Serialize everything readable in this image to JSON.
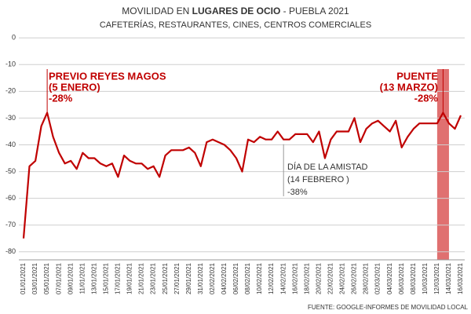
{
  "chart_data": {
    "type": "line",
    "title_parts": [
      "MOVILIDAD EN ",
      "LUGARES DE OCIO",
      " - PUEBLA 2021"
    ],
    "subtitle": "CAFETERÍAS, RESTAURANTES, CINES, CENTROS COMERCIALES",
    "source": "FUENTE: GOOGLE-INFORMES DE MOVILIDAD LOCAL",
    "categories": [
      "01/01/2021",
      null,
      "03/01/2021",
      null,
      "05/01/2021",
      null,
      "07/01/2021",
      null,
      "09/01/2021",
      null,
      "11/01/2021",
      null,
      "13/01/2021",
      null,
      "15/01/2021",
      null,
      "17/01/2021",
      null,
      "19/01/2021",
      null,
      "21/01/2021",
      null,
      "23/01/2021",
      null,
      "25/01/2021",
      null,
      "27/01/2021",
      null,
      "29/01/2021",
      null,
      "31/01/2021",
      null,
      "02/02/2021",
      null,
      "04/02/2021",
      null,
      "06/02/2021",
      null,
      "08/02/2021",
      null,
      "10/02/2021",
      null,
      "12/02/2021",
      null,
      "14/02/2021",
      null,
      "16/02/2021",
      null,
      "18/02/2021",
      null,
      "20/02/2021",
      null,
      "22/02/2021",
      null,
      "24/02/2021",
      null,
      "26/02/2021",
      null,
      "28/02/2021",
      null,
      "02/03/2021",
      null,
      "04/03/2021",
      null,
      "06/03/2021",
      null,
      "08/03/2021",
      null,
      "10/03/2021",
      null,
      "12/03/2021",
      null,
      "14/03/2021",
      null,
      "16/03/2021"
    ],
    "series": [
      {
        "name": null,
        "color": "#c00000",
        "values": [
          -75,
          -48,
          -46,
          -33,
          -28,
          -37,
          -43,
          -47,
          -46,
          -49,
          -43,
          -45,
          -45,
          -47,
          -48,
          -47,
          -52,
          -44,
          -46,
          -47,
          -47,
          -49,
          -48,
          -52,
          -44,
          -42,
          -42,
          -42,
          -41,
          -43,
          -48,
          -39,
          -38,
          -39,
          -40,
          -42,
          -45,
          -50,
          -38,
          -39,
          -37,
          -38,
          -38,
          -35,
          -38,
          -38,
          -36,
          -36,
          -36,
          -39,
          -35,
          -45,
          -38,
          -35,
          -35,
          -35,
          -30,
          -39,
          -34,
          -32,
          -31,
          -33,
          -35,
          -31,
          -41,
          -37,
          -34,
          -32,
          -32,
          -32,
          -32,
          -28,
          -32,
          -34,
          -29
        ]
      }
    ],
    "ylim": [
      -83,
      3
    ],
    "yticks": [
      0,
      -10,
      -20,
      -30,
      -40,
      -50,
      -60,
      -70,
      -80
    ],
    "grid": true,
    "highlight_color": "#e07070",
    "annotations": [
      {
        "lines": [
          "PREVIO REYES MAGOS",
          "(5 ENERO)",
          "-28%"
        ],
        "color": "#c00000"
      },
      {
        "lines": [
          "PUENTE",
          "(13 MARZO)",
          "-28%"
        ],
        "color": "#c00000"
      },
      {
        "lines": [
          "DÍA DE LA AMISTAD",
          "(14 FEBRERO )",
          "-38%"
        ],
        "color": "#333333"
      }
    ]
  }
}
